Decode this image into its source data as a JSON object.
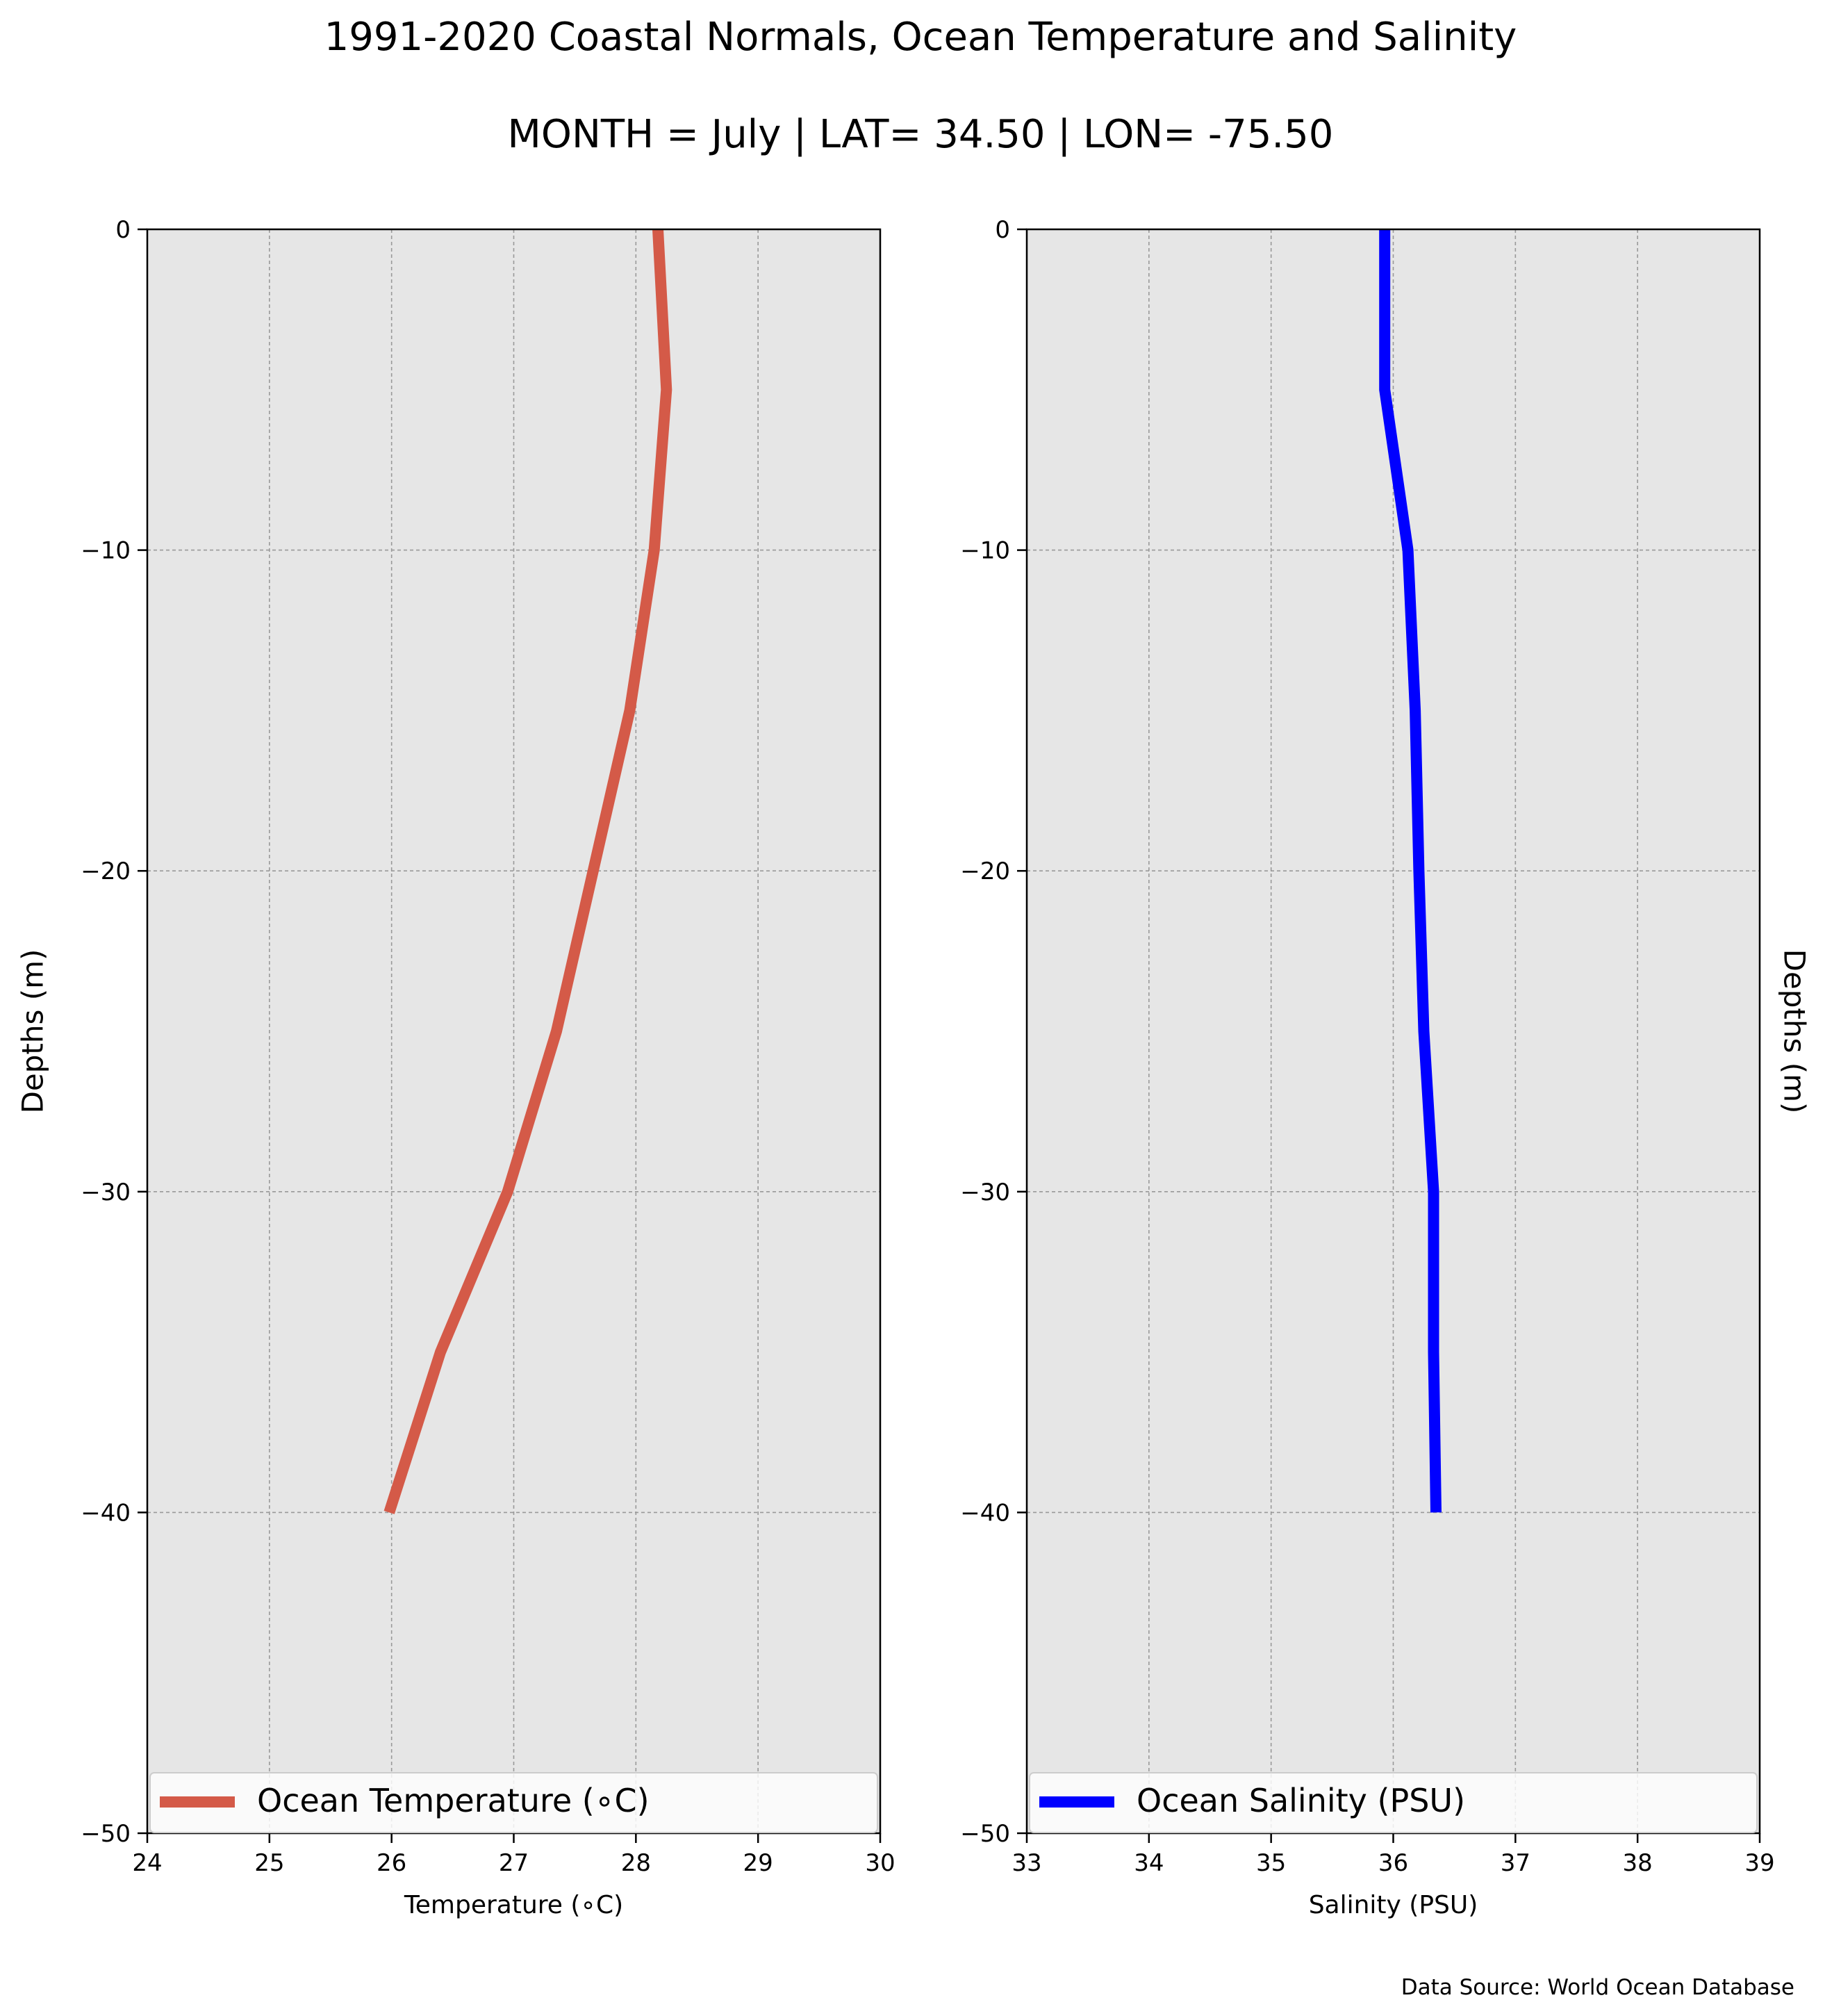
{
  "title": "1991-2020 Coastal Normals, Ocean Temperature and Salinity",
  "subtitle": "MONTH = July | LAT= 34.50 | LON= -75.50",
  "source_note": "Data Source: World Ocean Database",
  "colors": {
    "temperature_line": "#d45a48",
    "salinity_line": "#0000ff",
    "plot_background": "#e6e6e6",
    "grid": "#999999"
  },
  "chart_data": [
    {
      "type": "line",
      "xlabel": "Temperature ($^\\circ$C)",
      "xlabel_display": "Temperature (∘C)",
      "ylabel": "Depths (m)",
      "xlim": [
        24,
        30
      ],
      "ylim": [
        -50,
        0
      ],
      "x_ticks": [
        24,
        25,
        26,
        27,
        28,
        29,
        30
      ],
      "y_ticks": [
        0,
        -10,
        -20,
        -30,
        -40,
        -50
      ],
      "x_tick_labels": [
        "24",
        "25",
        "26",
        "27",
        "28",
        "29",
        "30"
      ],
      "y_tick_labels": [
        "0",
        "−10",
        "−20",
        "−30",
        "−40",
        "−50"
      ],
      "grid": true,
      "legend_position": "lower-center",
      "series": [
        {
          "name": "Ocean Temperature (∘C)",
          "x": [
            28.18,
            28.25,
            28.15,
            27.95,
            27.65,
            27.35,
            26.95,
            26.4,
            25.98
          ],
          "y": [
            0,
            -5,
            -10,
            -15,
            -20,
            -25,
            -30,
            -35,
            -40
          ]
        }
      ]
    },
    {
      "type": "line",
      "xlabel": "Salinity (PSU)",
      "ylabel": "Depths (m)",
      "xlim": [
        33,
        39
      ],
      "ylim": [
        -50,
        0
      ],
      "x_ticks": [
        33,
        34,
        35,
        36,
        37,
        38,
        39
      ],
      "y_ticks": [
        0,
        -10,
        -20,
        -30,
        -40,
        -50
      ],
      "x_tick_labels": [
        "33",
        "34",
        "35",
        "36",
        "37",
        "38",
        "39"
      ],
      "y_tick_labels": [
        "0",
        "−10",
        "−20",
        "−30",
        "−40",
        "−50"
      ],
      "grid": true,
      "legend_position": "lower-center",
      "series": [
        {
          "name": "Ocean Salinity (PSU)",
          "x": [
            35.93,
            35.93,
            36.12,
            36.18,
            36.21,
            36.25,
            36.33,
            36.33,
            36.35
          ],
          "y": [
            0,
            -5,
            -10,
            -15,
            -20,
            -25,
            -30,
            -35,
            -40
          ]
        }
      ]
    }
  ]
}
